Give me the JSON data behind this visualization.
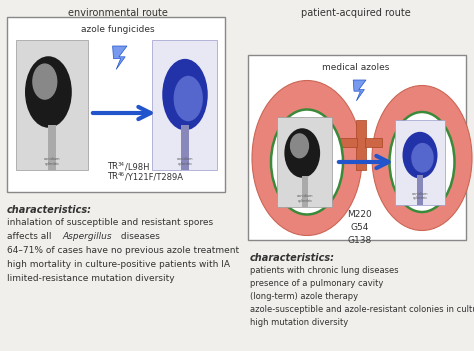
{
  "title_left": "environmental route",
  "title_right": "patient-acquired route",
  "left_box_label": "azole fungicides",
  "left_mutations_line1": "TR",
  "left_mutations_sub1": "34",
  "left_mutations_rest1": "/L98H",
  "left_mutations_line2": "TR",
  "left_mutations_sub2": "46",
  "left_mutations_rest2": "/Y121F/T289A",
  "right_box_label": "medical azoles",
  "right_mutations": "M220\nG54\nG138",
  "left_characteristics_title": "characteristics:",
  "left_characteristics": [
    "inhalation of susceptible and resistant spores",
    "affects all Aspergillus diseases",
    "64–71% of cases have no previous azole treatment",
    "high mortality in culture-positive patients with IA",
    "limited-resistance mutation diversity"
  ],
  "right_characteristics_title": "characteristics:",
  "right_characteristics": [
    "patients with chronic lung diseases",
    "presence of a pulmonary cavity",
    "(long-term) azole therapy",
    "azole-susceptible and azole-resistant colonies in culture",
    "high mutation diversity"
  ],
  "bg_color": "#f0efeb",
  "box_color": "#ffffff",
  "arrow_color": "#2255cc",
  "lung_color": "#e8847a",
  "cavity_color": "#ffffff",
  "cavity_edge": "#3a8a3a",
  "text_color": "#333333",
  "bronchus_color": "#cc6644"
}
